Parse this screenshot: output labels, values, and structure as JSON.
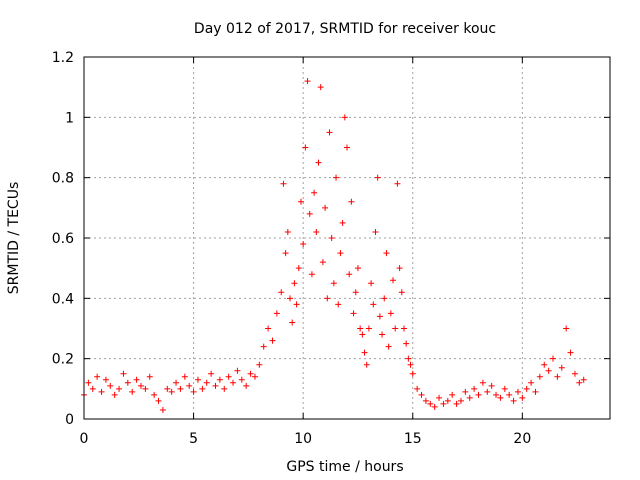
{
  "chart_data": {
    "type": "scatter",
    "title": "Day 012 of 2017, SRMTID for receiver kouc",
    "xlabel": "GPS time / hours",
    "ylabel": "SRMTID / TECUs",
    "xlim": [
      0,
      24
    ],
    "ylim": [
      0,
      1.2
    ],
    "x_ticks": [
      0,
      5,
      10,
      15,
      20
    ],
    "x_tick_labels": [
      "0",
      "5",
      "10",
      "15",
      "20"
    ],
    "y_ticks": [
      0,
      0.2,
      0.4,
      0.6,
      0.8,
      1.0,
      1.2
    ],
    "y_tick_labels": [
      "0",
      "0.2",
      "0.4",
      "0.6",
      "0.8",
      "1",
      "1.2"
    ],
    "grid": true,
    "marker": "+",
    "series": [
      {
        "name": "SRMTID",
        "color": "#ff0000",
        "x": [
          0.0,
          0.2,
          0.4,
          0.6,
          0.8,
          1.0,
          1.2,
          1.4,
          1.6,
          1.8,
          2.0,
          2.2,
          2.4,
          2.6,
          2.8,
          3.0,
          3.2,
          3.4,
          3.6,
          3.8,
          4.0,
          4.2,
          4.4,
          4.6,
          4.8,
          5.0,
          5.2,
          5.4,
          5.6,
          5.8,
          6.0,
          6.2,
          6.4,
          6.6,
          6.8,
          7.0,
          7.2,
          7.4,
          7.6,
          7.8,
          8.0,
          8.2,
          8.4,
          8.6,
          8.8,
          9.0,
          9.1,
          9.2,
          9.3,
          9.4,
          9.5,
          9.6,
          9.7,
          9.8,
          9.9,
          10.0,
          10.1,
          10.2,
          10.3,
          10.4,
          10.5,
          10.6,
          10.7,
          10.8,
          10.9,
          11.0,
          11.1,
          11.2,
          11.3,
          11.4,
          11.5,
          11.6,
          11.7,
          11.8,
          11.9,
          12.0,
          12.1,
          12.2,
          12.3,
          12.4,
          12.5,
          12.6,
          12.7,
          12.8,
          12.9,
          13.0,
          13.1,
          13.2,
          13.3,
          13.4,
          13.5,
          13.6,
          13.7,
          13.8,
          13.9,
          14.0,
          14.1,
          14.2,
          14.3,
          14.4,
          14.5,
          14.6,
          14.7,
          14.8,
          14.9,
          15.0,
          15.2,
          15.4,
          15.6,
          15.8,
          16.0,
          16.2,
          16.4,
          16.6,
          16.8,
          17.0,
          17.2,
          17.4,
          17.6,
          17.8,
          18.0,
          18.2,
          18.4,
          18.6,
          18.8,
          19.0,
          19.2,
          19.4,
          19.6,
          19.8,
          20.0,
          20.2,
          20.4,
          20.6,
          20.8,
          21.0,
          21.2,
          21.4,
          21.6,
          21.8,
          22.0,
          22.2,
          22.4,
          22.6,
          22.8
        ],
        "y": [
          0.08,
          0.12,
          0.1,
          0.14,
          0.09,
          0.13,
          0.11,
          0.08,
          0.1,
          0.15,
          0.12,
          0.09,
          0.13,
          0.11,
          0.1,
          0.14,
          0.08,
          0.06,
          0.03,
          0.1,
          0.09,
          0.12,
          0.1,
          0.14,
          0.11,
          0.09,
          0.13,
          0.1,
          0.12,
          0.15,
          0.11,
          0.13,
          0.1,
          0.14,
          0.12,
          0.16,
          0.13,
          0.11,
          0.15,
          0.14,
          0.18,
          0.24,
          0.3,
          0.26,
          0.35,
          0.42,
          0.78,
          0.55,
          0.62,
          0.4,
          0.32,
          0.45,
          0.38,
          0.5,
          0.72,
          0.58,
          0.9,
          1.12,
          0.68,
          0.48,
          0.75,
          0.62,
          0.85,
          1.1,
          0.52,
          0.7,
          0.4,
          0.95,
          0.6,
          0.45,
          0.8,
          0.38,
          0.55,
          0.65,
          1.0,
          0.9,
          0.48,
          0.72,
          0.35,
          0.42,
          0.5,
          0.3,
          0.28,
          0.22,
          0.18,
          0.3,
          0.45,
          0.38,
          0.62,
          0.8,
          0.34,
          0.28,
          0.4,
          0.55,
          0.24,
          0.35,
          0.46,
          0.3,
          0.78,
          0.5,
          0.42,
          0.3,
          0.25,
          0.2,
          0.18,
          0.15,
          0.1,
          0.08,
          0.06,
          0.05,
          0.04,
          0.07,
          0.05,
          0.06,
          0.08,
          0.05,
          0.06,
          0.09,
          0.07,
          0.1,
          0.08,
          0.12,
          0.09,
          0.11,
          0.08,
          0.07,
          0.1,
          0.08,
          0.06,
          0.09,
          0.07,
          0.1,
          0.12,
          0.09,
          0.14,
          0.18,
          0.16,
          0.2,
          0.14,
          0.17,
          0.3,
          0.22,
          0.15,
          0.12,
          0.13
        ]
      }
    ]
  }
}
